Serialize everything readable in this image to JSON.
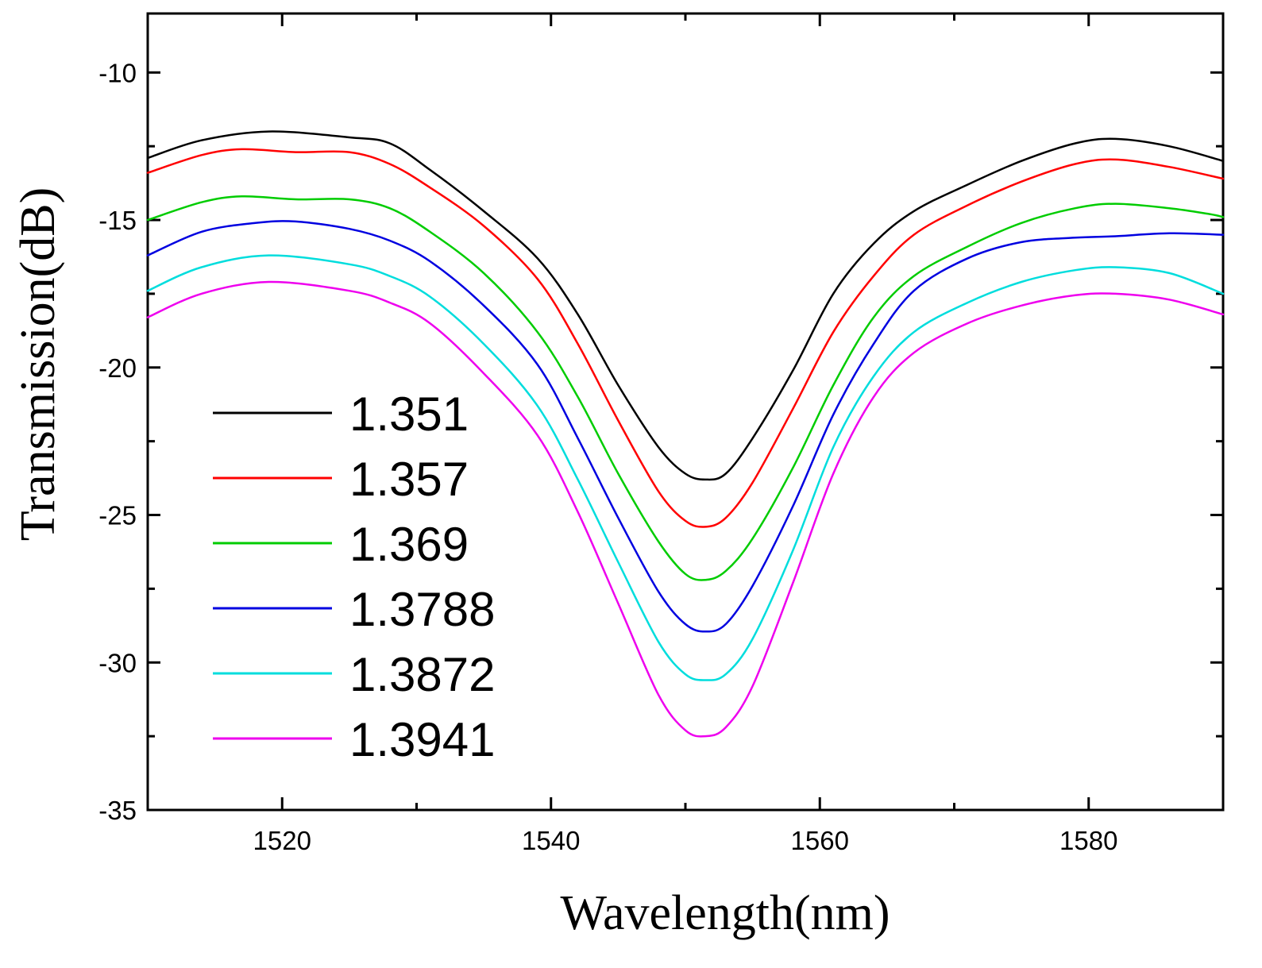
{
  "chart_data": {
    "type": "line",
    "title": "",
    "xlabel": "Wavelength(nm)",
    "ylabel": "Transmission(dB)",
    "xlim": [
      1510,
      1590
    ],
    "ylim": [
      -35,
      -8
    ],
    "xticks": [
      1520,
      1540,
      1560,
      1580
    ],
    "xtick_labels": [
      "1520",
      "1540",
      "1560",
      "1580"
    ],
    "yticks": [
      -10,
      -15,
      -20,
      -25,
      -30,
      -35
    ],
    "ytick_labels": [
      "-10",
      "-15",
      "-20",
      "-25",
      "-30",
      "-35"
    ],
    "grid": false,
    "legend_position": "bottom-left",
    "series": [
      {
        "name": "1.351",
        "color": "#000000",
        "x": [
          1510,
          1514,
          1519,
          1525,
          1528,
          1531,
          1535,
          1539,
          1542,
          1545,
          1548,
          1550,
          1551.5,
          1553,
          1555,
          1558,
          1561,
          1564,
          1567,
          1571,
          1575,
          1579,
          1582,
          1586,
          1590
        ],
        "y": [
          -12.9,
          -12.3,
          -12.0,
          -12.2,
          -12.4,
          -13.3,
          -14.7,
          -16.3,
          -18.2,
          -20.6,
          -22.7,
          -23.6,
          -23.8,
          -23.6,
          -22.4,
          -20.1,
          -17.5,
          -15.8,
          -14.7,
          -13.8,
          -13.0,
          -12.4,
          -12.25,
          -12.5,
          -13.0
        ]
      },
      {
        "name": "1.357",
        "color": "#ff0000",
        "x": [
          1510,
          1514,
          1517,
          1521,
          1525,
          1528,
          1531,
          1535,
          1539,
          1542,
          1545,
          1548,
          1550,
          1551.5,
          1553,
          1555,
          1558,
          1561,
          1564,
          1567,
          1571,
          1575,
          1579,
          1582,
          1586,
          1590
        ],
        "y": [
          -13.4,
          -12.8,
          -12.6,
          -12.7,
          -12.7,
          -13.1,
          -13.9,
          -15.2,
          -17.0,
          -19.2,
          -21.8,
          -24.2,
          -25.2,
          -25.4,
          -25.1,
          -23.9,
          -21.4,
          -18.8,
          -16.9,
          -15.5,
          -14.5,
          -13.7,
          -13.1,
          -12.95,
          -13.2,
          -13.6
        ]
      },
      {
        "name": "1.369",
        "color": "#00cc00",
        "x": [
          1510,
          1514,
          1517,
          1521,
          1525,
          1528,
          1531,
          1535,
          1539,
          1542,
          1545,
          1548,
          1550,
          1551.5,
          1553,
          1555,
          1558,
          1561,
          1564,
          1567,
          1571,
          1575,
          1579,
          1582,
          1586,
          1589,
          1590
        ],
        "y": [
          -15.0,
          -14.4,
          -14.2,
          -14.3,
          -14.3,
          -14.6,
          -15.4,
          -16.8,
          -18.8,
          -21.0,
          -23.6,
          -25.9,
          -27.0,
          -27.2,
          -26.9,
          -25.8,
          -23.4,
          -20.6,
          -18.3,
          -16.9,
          -15.9,
          -15.1,
          -14.6,
          -14.45,
          -14.6,
          -14.8,
          -14.9
        ]
      },
      {
        "name": "1.3788",
        "color": "#0000e0",
        "x": [
          1510,
          1514,
          1518,
          1521,
          1525,
          1528,
          1531,
          1535,
          1539,
          1542,
          1545,
          1548,
          1550,
          1551.5,
          1553,
          1555,
          1558,
          1561,
          1564,
          1567,
          1571,
          1575,
          1579,
          1582,
          1586,
          1590
        ],
        "y": [
          -16.2,
          -15.4,
          -15.1,
          -15.05,
          -15.3,
          -15.7,
          -16.4,
          -17.9,
          -19.9,
          -22.4,
          -25.1,
          -27.6,
          -28.7,
          -28.95,
          -28.7,
          -27.4,
          -24.7,
          -21.6,
          -19.2,
          -17.4,
          -16.3,
          -15.75,
          -15.6,
          -15.55,
          -15.45,
          -15.5
        ]
      },
      {
        "name": "1.3872",
        "color": "#00dddd",
        "x": [
          1510,
          1514,
          1519,
          1525,
          1528,
          1531,
          1535,
          1539,
          1542,
          1545,
          1548,
          1550,
          1551.5,
          1553,
          1555,
          1558,
          1561,
          1564,
          1567,
          1571,
          1575,
          1579,
          1582,
          1586,
          1590
        ],
        "y": [
          -17.4,
          -16.6,
          -16.2,
          -16.5,
          -16.9,
          -17.6,
          -19.2,
          -21.3,
          -23.8,
          -26.6,
          -29.3,
          -30.4,
          -30.6,
          -30.4,
          -29.2,
          -26.2,
          -22.7,
          -20.3,
          -18.8,
          -17.8,
          -17.1,
          -16.7,
          -16.6,
          -16.8,
          -17.5
        ]
      },
      {
        "name": "1.3941",
        "color": "#ee00ee",
        "x": [
          1510,
          1514,
          1519,
          1525,
          1528,
          1531,
          1535,
          1539,
          1542,
          1545,
          1548,
          1550,
          1551.5,
          1553,
          1555,
          1558,
          1561,
          1564,
          1567,
          1571,
          1575,
          1579,
          1582,
          1586,
          1590
        ],
        "y": [
          -18.3,
          -17.5,
          -17.1,
          -17.4,
          -17.8,
          -18.5,
          -20.2,
          -22.3,
          -24.9,
          -28.0,
          -31.1,
          -32.3,
          -32.5,
          -32.2,
          -30.8,
          -27.3,
          -23.6,
          -21.0,
          -19.5,
          -18.5,
          -17.9,
          -17.55,
          -17.5,
          -17.7,
          -18.2
        ]
      }
    ]
  }
}
